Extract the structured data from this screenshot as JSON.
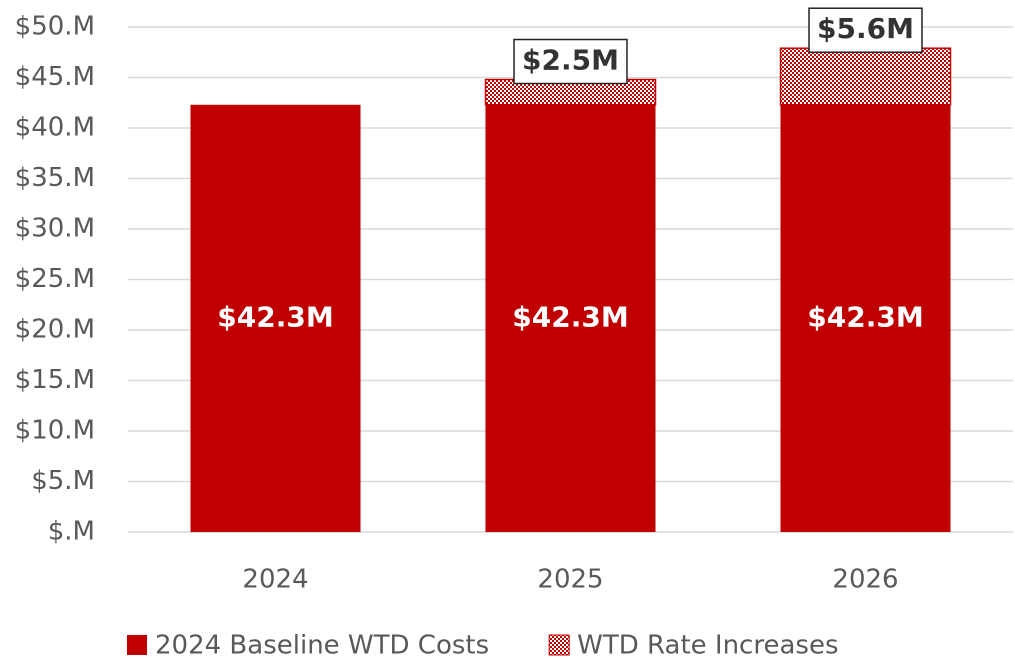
{
  "chart_data": {
    "type": "stacked-bar",
    "categories": [
      "2024",
      "2025",
      "2026"
    ],
    "series": [
      {
        "name": "2024 Baseline WTD Costs",
        "color": "#c00000",
        "values": [
          42.3,
          42.3,
          42.3
        ],
        "value_labels": [
          "$42.3M",
          "$42.3M",
          "$42.3M"
        ]
      },
      {
        "name": "WTD Rate Increases",
        "color": "#c00000",
        "pattern": "dotted",
        "values": [
          null,
          2.5,
          5.6
        ],
        "value_labels": [
          null,
          "$2.5M",
          "$5.6M"
        ]
      }
    ],
    "ylim": [
      0,
      50
    ],
    "yticks": [
      {
        "value": 0,
        "label": "$.M"
      },
      {
        "value": 5,
        "label": "$5.M"
      },
      {
        "value": 10,
        "label": "$10.M"
      },
      {
        "value": 15,
        "label": "$15.M"
      },
      {
        "value": 20,
        "label": "$20.M"
      },
      {
        "value": 25,
        "label": "$25.M"
      },
      {
        "value": 30,
        "label": "$30.M"
      },
      {
        "value": 35,
        "label": "$35.M"
      },
      {
        "value": 40,
        "label": "$40.M"
      },
      {
        "value": 45,
        "label": "$45.M"
      },
      {
        "value": 50,
        "label": "$50.M"
      }
    ],
    "grid": true,
    "legend": "bottom"
  }
}
